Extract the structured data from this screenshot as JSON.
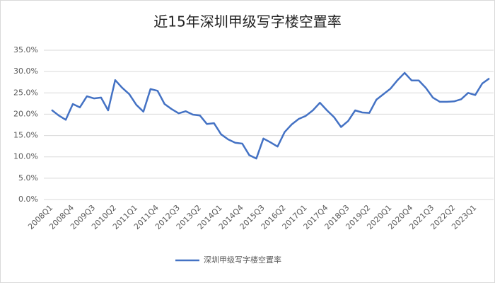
{
  "chart_data": {
    "type": "line",
    "title": "近15年深圳甲级写字楼空置率",
    "categories": [
      "2008Q1",
      null,
      null,
      "2008Q4",
      null,
      null,
      "2009Q3",
      null,
      null,
      "2010Q2",
      null,
      null,
      "2011Q1",
      null,
      null,
      "2011Q4",
      null,
      null,
      "2012Q3",
      null,
      null,
      "2013Q2",
      null,
      null,
      "2014Q1",
      null,
      null,
      "2014Q4",
      null,
      null,
      "2015Q3",
      null,
      null,
      "2016Q2",
      null,
      null,
      "2017Q1",
      null,
      null,
      "2017Q4",
      null,
      null,
      "2018Q3",
      null,
      null,
      "2019Q2",
      null,
      null,
      "2020Q1",
      null,
      null,
      "2020Q4",
      null,
      null,
      "2021Q3",
      null,
      null,
      "2022Q2",
      null,
      null,
      "2023Q1",
      null,
      null
    ],
    "series": [
      {
        "name": "深圳甲级写字楼空置率",
        "color": "#4472c4",
        "values": [
          21.0,
          19.7,
          18.7,
          22.4,
          21.6,
          24.2,
          23.7,
          23.9,
          20.9,
          28.0,
          26.2,
          24.7,
          22.2,
          20.6,
          25.9,
          25.5,
          22.4,
          21.2,
          20.2,
          20.7,
          19.9,
          19.7,
          17.7,
          17.9,
          15.3,
          14.1,
          13.3,
          13.1,
          10.4,
          9.6,
          14.3,
          13.4,
          12.4,
          15.8,
          17.6,
          18.9,
          19.6,
          20.9,
          22.7,
          20.9,
          19.3,
          17.0,
          18.4,
          20.9,
          20.4,
          20.3,
          23.4,
          24.7,
          26.0,
          28.0,
          29.7,
          27.9,
          27.9,
          26.2,
          23.9,
          22.9,
          22.9,
          23.0,
          23.5,
          25.0,
          24.5,
          27.2,
          28.4
        ]
      }
    ],
    "ylim": [
      0,
      35
    ],
    "yticks": [
      {
        "value": 0,
        "label": "0.0%"
      },
      {
        "value": 5,
        "label": "5.0%"
      },
      {
        "value": 10,
        "label": "10.0%"
      },
      {
        "value": 15,
        "label": "15.0%"
      },
      {
        "value": 20,
        "label": "20.0%"
      },
      {
        "value": 25,
        "label": "25.0%"
      },
      {
        "value": 30,
        "label": "30.0%"
      },
      {
        "value": 35,
        "label": "35.0%"
      }
    ],
    "grid": true,
    "legend": "bottom"
  }
}
